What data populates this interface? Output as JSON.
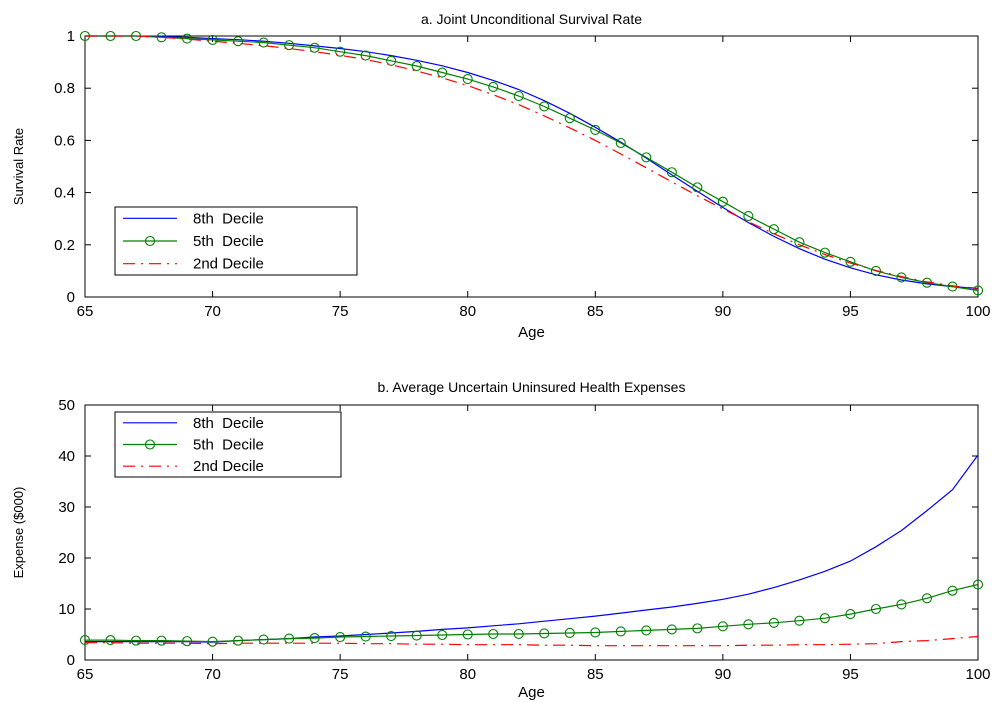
{
  "colors": {
    "blue": "#0000ff",
    "green": "#008000",
    "red": "#ff0000"
  },
  "chart_data": [
    {
      "type": "line",
      "title": "a. Joint Unconditional Survival Rate",
      "xlabel": "Age",
      "ylabel": "Survival Rate",
      "xlim": [
        65,
        100
      ],
      "ylim": [
        0,
        1
      ],
      "xticks": [
        "65",
        "70",
        "75",
        "80",
        "85",
        "90",
        "95",
        "100"
      ],
      "yticks": [
        "0",
        "0.2",
        "0.4",
        "0.6",
        "0.8",
        "1"
      ],
      "legend_position": "lower-left",
      "x": [
        65,
        66,
        67,
        68,
        69,
        70,
        71,
        72,
        73,
        74,
        75,
        76,
        77,
        78,
        79,
        80,
        81,
        82,
        83,
        84,
        85,
        86,
        87,
        88,
        89,
        90,
        91,
        92,
        93,
        94,
        95,
        96,
        97,
        98,
        99,
        100
      ],
      "series": [
        {
          "name": "8th  Decile",
          "color": "#0000ff",
          "style": "solid",
          "marker": "none",
          "values": [
            1,
            1,
            1,
            0.998,
            0.995,
            0.99,
            0.986,
            0.98,
            0.972,
            0.962,
            0.952,
            0.94,
            0.925,
            0.907,
            0.886,
            0.86,
            0.83,
            0.795,
            0.752,
            0.704,
            0.65,
            0.593,
            0.532,
            0.468,
            0.405,
            0.343,
            0.285,
            0.232,
            0.185,
            0.145,
            0.112,
            0.085,
            0.065,
            0.05,
            0.04,
            0.033
          ]
        },
        {
          "name": "5th  Decile",
          "color": "#008000",
          "style": "solid",
          "marker": "circle",
          "values": [
            1,
            1,
            1,
            0.995,
            0.99,
            0.985,
            0.98,
            0.975,
            0.965,
            0.955,
            0.94,
            0.925,
            0.905,
            0.885,
            0.86,
            0.835,
            0.805,
            0.77,
            0.73,
            0.685,
            0.64,
            0.59,
            0.535,
            0.478,
            0.42,
            0.365,
            0.31,
            0.26,
            0.21,
            0.17,
            0.135,
            0.1,
            0.075,
            0.055,
            0.04,
            0.025
          ]
        },
        {
          "name": "2nd Decile",
          "color": "#ff0000",
          "style": "dashdot",
          "marker": "none",
          "values": [
            1,
            1,
            1,
            0.995,
            0.988,
            0.98,
            0.972,
            0.963,
            0.952,
            0.94,
            0.926,
            0.91,
            0.89,
            0.866,
            0.84,
            0.81,
            0.775,
            0.737,
            0.694,
            0.648,
            0.6,
            0.548,
            0.495,
            0.441,
            0.388,
            0.337,
            0.288,
            0.242,
            0.2,
            0.163,
            0.13,
            0.102,
            0.078,
            0.058,
            0.043,
            0.03
          ]
        }
      ]
    },
    {
      "type": "line",
      "title": "b. Average Uncertain Uninsured Health Expenses",
      "xlabel": "Age",
      "ylabel": "Expense ($000)",
      "xlim": [
        65,
        100
      ],
      "ylim": [
        0,
        50
      ],
      "xticks": [
        "65",
        "70",
        "75",
        "80",
        "85",
        "90",
        "95",
        "100"
      ],
      "yticks": [
        "0",
        "10",
        "20",
        "30",
        "40",
        "50"
      ],
      "legend_position": "upper-left",
      "x": [
        65,
        66,
        67,
        68,
        69,
        70,
        71,
        72,
        73,
        74,
        75,
        76,
        77,
        78,
        79,
        80,
        81,
        82,
        83,
        84,
        85,
        86,
        87,
        88,
        89,
        90,
        91,
        92,
        93,
        94,
        95,
        96,
        97,
        98,
        99,
        100
      ],
      "series": [
        {
          "name": "8th  Decile",
          "color": "#0000ff",
          "style": "solid",
          "marker": "none",
          "values": [
            3.6,
            3.6,
            3.6,
            3.6,
            3.6,
            3.5,
            3.8,
            4,
            4.2,
            4.5,
            4.7,
            5,
            5.3,
            5.6,
            6,
            6.3,
            6.7,
            7.1,
            7.6,
            8.1,
            8.6,
            9.2,
            9.8,
            10.4,
            11.1,
            11.9,
            12.9,
            14.2,
            15.7,
            17.4,
            19.4,
            22.2,
            25.4,
            29.3,
            33.4,
            40.2
          ]
        },
        {
          "name": "5th  Decile",
          "color": "#008000",
          "style": "solid",
          "marker": "circle",
          "values": [
            3.9,
            3.9,
            3.8,
            3.8,
            3.7,
            3.6,
            3.8,
            4,
            4.2,
            4.3,
            4.5,
            4.6,
            4.7,
            4.8,
            4.9,
            5,
            5.1,
            5.1,
            5.2,
            5.3,
            5.4,
            5.6,
            5.8,
            6,
            6.2,
            6.6,
            7,
            7.3,
            7.7,
            8.2,
            9,
            10,
            10.9,
            12.1,
            13.6,
            14.8
          ]
        },
        {
          "name": "2nd Decile",
          "color": "#ff0000",
          "style": "dashdot",
          "marker": "none",
          "values": [
            3.4,
            3.4,
            3.3,
            3.3,
            3.3,
            3.2,
            3.3,
            3.3,
            3.3,
            3.3,
            3.3,
            3.2,
            3.2,
            3.1,
            3.1,
            3,
            3,
            3,
            2.9,
            2.9,
            2.8,
            2.8,
            2.8,
            2.8,
            2.8,
            2.8,
            2.9,
            2.9,
            3,
            3,
            3.1,
            3.2,
            3.6,
            3.8,
            4.2,
            4.6
          ]
        }
      ]
    }
  ]
}
